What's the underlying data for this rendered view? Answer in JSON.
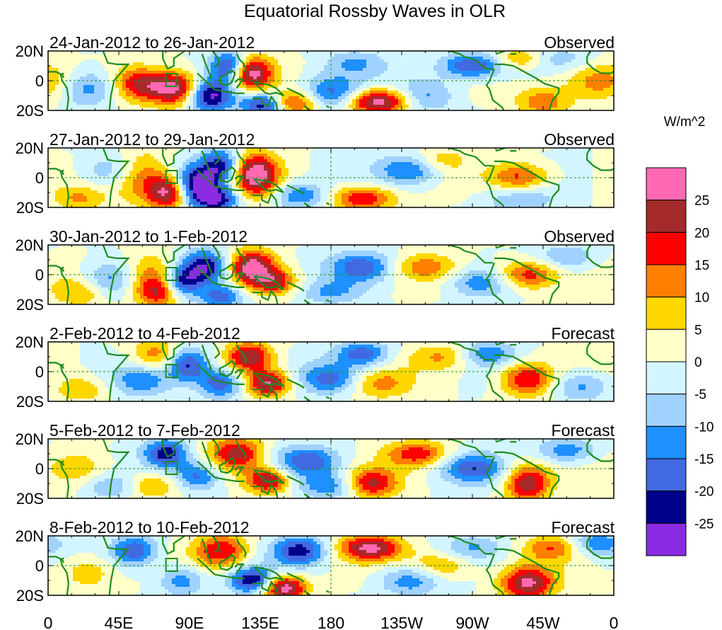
{
  "chart_data": {
    "type": "heatmap",
    "title": "Equatorial Rossby Waves in OLR",
    "units": "W/m^2",
    "x_ticks": [
      "0",
      "45E",
      "90E",
      "135E",
      "180",
      "135W",
      "90W",
      "45W",
      "0"
    ],
    "x_range_deg": [
      0,
      360
    ],
    "y_ticks": [
      "20N",
      "0",
      "20S"
    ],
    "y_range_deg": [
      -20,
      20
    ],
    "colorbar": {
      "labels": [
        "25",
        "20",
        "15",
        "10",
        "5",
        "0",
        "-5",
        "-10",
        "-15",
        "-20",
        "-25"
      ],
      "colors": [
        "#ff69b4",
        "#a52a2a",
        "#ff0000",
        "#ff7f00",
        "#ffd700",
        "#ffffc8",
        "#d2f5ff",
        "#a0d2ff",
        "#1e90ff",
        "#4169e1",
        "#00008b",
        "#8a2be2"
      ]
    },
    "panels": [
      {
        "date": "24-Jan-2012 to 26-Jan-2012",
        "kind": "Observed",
        "features": [
          {
            "lon": 80,
            "lat": -5,
            "amp": 30,
            "sx": 12,
            "sy": 8
          },
          {
            "lon": 57,
            "lat": -2,
            "amp": 18,
            "sx": 10,
            "sy": 8
          },
          {
            "lon": 130,
            "lat": 5,
            "amp": 28,
            "sx": 9,
            "sy": 8
          },
          {
            "lon": 155,
            "lat": -15,
            "amp": 22,
            "sx": 12,
            "sy": 6
          },
          {
            "lon": 210,
            "lat": -14,
            "amp": 30,
            "sx": 14,
            "sy": 6
          },
          {
            "lon": 315,
            "lat": -14,
            "amp": 14,
            "sx": 12,
            "sy": 7
          },
          {
            "lon": 350,
            "lat": 0,
            "amp": 14,
            "sx": 16,
            "sy": 9
          },
          {
            "lon": 300,
            "lat": 15,
            "amp": 12,
            "sx": 12,
            "sy": 5
          },
          {
            "lon": 103,
            "lat": -10,
            "amp": -28,
            "sx": 10,
            "sy": 8
          },
          {
            "lon": 138,
            "lat": -16,
            "amp": -28,
            "sx": 10,
            "sy": 6
          },
          {
            "lon": 25,
            "lat": -5,
            "amp": -14,
            "sx": 12,
            "sy": 9
          },
          {
            "lon": 115,
            "lat": 10,
            "amp": -22,
            "sx": 8,
            "sy": 7
          },
          {
            "lon": 180,
            "lat": -8,
            "amp": -18,
            "sx": 14,
            "sy": 8
          },
          {
            "lon": 270,
            "lat": 10,
            "amp": -22,
            "sx": 14,
            "sy": 6
          },
          {
            "lon": 240,
            "lat": -10,
            "amp": -12,
            "sx": 14,
            "sy": 8
          },
          {
            "lon": 325,
            "lat": 15,
            "amp": -8,
            "sx": 16,
            "sy": 6
          },
          {
            "lon": 195,
            "lat": 12,
            "amp": -10,
            "sx": 14,
            "sy": 6
          }
        ]
      },
      {
        "date": "27-Jan-2012 to 29-Jan-2012",
        "kind": "Observed",
        "features": [
          {
            "lon": 60,
            "lat": 0,
            "amp": 16,
            "sx": 12,
            "sy": 12
          },
          {
            "lon": 77,
            "lat": -10,
            "amp": 26,
            "sx": 9,
            "sy": 8
          },
          {
            "lon": 132,
            "lat": 2,
            "amp": 30,
            "sx": 10,
            "sy": 10
          },
          {
            "lon": 200,
            "lat": -14,
            "amp": 20,
            "sx": 14,
            "sy": 6
          },
          {
            "lon": 300,
            "lat": 0,
            "amp": 18,
            "sx": 14,
            "sy": 7
          },
          {
            "lon": 250,
            "lat": 12,
            "amp": 8,
            "sx": 12,
            "sy": 6
          },
          {
            "lon": 20,
            "lat": -14,
            "amp": 10,
            "sx": 12,
            "sy": 6
          },
          {
            "lon": 95,
            "lat": -5,
            "amp": -28,
            "sx": 10,
            "sy": 9
          },
          {
            "lon": 108,
            "lat": -15,
            "amp": -22,
            "sx": 10,
            "sy": 6
          },
          {
            "lon": 110,
            "lat": 8,
            "amp": -22,
            "sx": 9,
            "sy": 8
          },
          {
            "lon": 160,
            "lat": -12,
            "amp": -15,
            "sx": 12,
            "sy": 6
          },
          {
            "lon": 230,
            "lat": 5,
            "amp": -16,
            "sx": 14,
            "sy": 7
          },
          {
            "lon": 300,
            "lat": -14,
            "amp": -10,
            "sx": 16,
            "sy": 7
          },
          {
            "lon": 40,
            "lat": 5,
            "amp": -10,
            "sx": 14,
            "sy": 8
          }
        ]
      },
      {
        "date": "30-Jan-2012 to 1-Feb-2012",
        "kind": "Observed",
        "features": [
          {
            "lon": 65,
            "lat": 0,
            "amp": 14,
            "sx": 12,
            "sy": 10
          },
          {
            "lon": 70,
            "lat": -12,
            "amp": 18,
            "sx": 10,
            "sy": 7
          },
          {
            "lon": 130,
            "lat": 5,
            "amp": 28,
            "sx": 10,
            "sy": 8
          },
          {
            "lon": 145,
            "lat": -5,
            "amp": 18,
            "sx": 10,
            "sy": 6
          },
          {
            "lon": 240,
            "lat": 5,
            "amp": 12,
            "sx": 14,
            "sy": 6
          },
          {
            "lon": 305,
            "lat": 0,
            "amp": 20,
            "sx": 14,
            "sy": 7
          },
          {
            "lon": 20,
            "lat": -12,
            "amp": 10,
            "sx": 12,
            "sy": 7
          },
          {
            "lon": 100,
            "lat": 5,
            "amp": -26,
            "sx": 10,
            "sy": 8
          },
          {
            "lon": 85,
            "lat": -5,
            "amp": -22,
            "sx": 8,
            "sy": 7
          },
          {
            "lon": 110,
            "lat": -15,
            "amp": -18,
            "sx": 10,
            "sy": 6
          },
          {
            "lon": 200,
            "lat": 5,
            "amp": -18,
            "sx": 14,
            "sy": 7
          },
          {
            "lon": 275,
            "lat": -5,
            "amp": -14,
            "sx": 14,
            "sy": 7
          },
          {
            "lon": 330,
            "lat": 12,
            "amp": -10,
            "sx": 14,
            "sy": 6
          },
          {
            "lon": 40,
            "lat": -3,
            "amp": -12,
            "sx": 12,
            "sy": 8
          },
          {
            "lon": 180,
            "lat": -12,
            "amp": -10,
            "sx": 14,
            "sy": 6
          }
        ]
      },
      {
        "date": "2-Feb-2012 to 4-Feb-2012",
        "kind": "Forecast",
        "features": [
          {
            "lon": 70,
            "lat": 10,
            "amp": 16,
            "sx": 12,
            "sy": 8
          },
          {
            "lon": 128,
            "lat": 10,
            "amp": 24,
            "sx": 10,
            "sy": 7
          },
          {
            "lon": 140,
            "lat": -8,
            "amp": 26,
            "sx": 10,
            "sy": 6
          },
          {
            "lon": 210,
            "lat": -8,
            "amp": 12,
            "sx": 14,
            "sy": 7
          },
          {
            "lon": 305,
            "lat": -5,
            "amp": 22,
            "sx": 12,
            "sy": 8
          },
          {
            "lon": 250,
            "lat": 10,
            "amp": 10,
            "sx": 14,
            "sy": 6
          },
          {
            "lon": 20,
            "lat": -12,
            "amp": 10,
            "sx": 12,
            "sy": 6
          },
          {
            "lon": 88,
            "lat": 5,
            "amp": -24,
            "sx": 10,
            "sy": 8
          },
          {
            "lon": 110,
            "lat": -8,
            "amp": -20,
            "sx": 10,
            "sy": 7
          },
          {
            "lon": 60,
            "lat": -5,
            "amp": -14,
            "sx": 12,
            "sy": 8
          },
          {
            "lon": 180,
            "lat": -5,
            "amp": -16,
            "sx": 14,
            "sy": 7
          },
          {
            "lon": 200,
            "lat": 12,
            "amp": -18,
            "sx": 12,
            "sy": 6
          },
          {
            "lon": 280,
            "lat": 12,
            "amp": -14,
            "sx": 12,
            "sy": 6
          },
          {
            "lon": 340,
            "lat": -10,
            "amp": -12,
            "sx": 14,
            "sy": 7
          }
        ]
      },
      {
        "date": "5-Feb-2012 to 7-Feb-2012",
        "kind": "Forecast",
        "features": [
          {
            "lon": 120,
            "lat": 10,
            "amp": 22,
            "sx": 12,
            "sy": 8
          },
          {
            "lon": 140,
            "lat": -8,
            "amp": 24,
            "sx": 10,
            "sy": 6
          },
          {
            "lon": 205,
            "lat": -10,
            "amp": 22,
            "sx": 12,
            "sy": 7
          },
          {
            "lon": 235,
            "lat": 10,
            "amp": 18,
            "sx": 14,
            "sy": 6
          },
          {
            "lon": 305,
            "lat": -10,
            "amp": 24,
            "sx": 10,
            "sy": 9
          },
          {
            "lon": 20,
            "lat": 0,
            "amp": 10,
            "sx": 14,
            "sy": 9
          },
          {
            "lon": 65,
            "lat": -12,
            "amp": 10,
            "sx": 12,
            "sy": 6
          },
          {
            "lon": 75,
            "lat": 10,
            "amp": -24,
            "sx": 10,
            "sy": 7
          },
          {
            "lon": 95,
            "lat": -5,
            "amp": -18,
            "sx": 10,
            "sy": 7
          },
          {
            "lon": 165,
            "lat": 5,
            "amp": -18,
            "sx": 14,
            "sy": 7
          },
          {
            "lon": 180,
            "lat": -12,
            "amp": -14,
            "sx": 14,
            "sy": 6
          },
          {
            "lon": 270,
            "lat": 0,
            "amp": -18,
            "sx": 14,
            "sy": 7
          },
          {
            "lon": 330,
            "lat": 12,
            "amp": -14,
            "sx": 14,
            "sy": 6
          },
          {
            "lon": 40,
            "lat": -12,
            "amp": -10,
            "sx": 12,
            "sy": 6
          }
        ]
      },
      {
        "date": "8-Feb-2012 to 10-Feb-2012",
        "kind": "Forecast",
        "features": [
          {
            "lon": 110,
            "lat": 10,
            "amp": 20,
            "sx": 12,
            "sy": 8
          },
          {
            "lon": 150,
            "lat": -15,
            "amp": 30,
            "sx": 10,
            "sy": 6
          },
          {
            "lon": 205,
            "lat": 12,
            "amp": 26,
            "sx": 14,
            "sy": 6
          },
          {
            "lon": 250,
            "lat": 0,
            "amp": 12,
            "sx": 14,
            "sy": 7
          },
          {
            "lon": 305,
            "lat": -12,
            "amp": 26,
            "sx": 12,
            "sy": 8
          },
          {
            "lon": 320,
            "lat": 12,
            "amp": 14,
            "sx": 12,
            "sy": 6
          },
          {
            "lon": 25,
            "lat": -5,
            "amp": 10,
            "sx": 12,
            "sy": 8
          },
          {
            "lon": 55,
            "lat": 10,
            "amp": -20,
            "sx": 10,
            "sy": 7
          },
          {
            "lon": 85,
            "lat": -10,
            "amp": -14,
            "sx": 10,
            "sy": 7
          },
          {
            "lon": 130,
            "lat": -10,
            "amp": -26,
            "sx": 10,
            "sy": 6
          },
          {
            "lon": 160,
            "lat": 10,
            "amp": -22,
            "sx": 12,
            "sy": 7
          },
          {
            "lon": 230,
            "lat": -10,
            "amp": -14,
            "sx": 14,
            "sy": 7
          },
          {
            "lon": 270,
            "lat": 12,
            "amp": -10,
            "sx": 14,
            "sy": 6
          },
          {
            "lon": 350,
            "lat": 15,
            "amp": -14,
            "sx": 12,
            "sy": 6
          }
        ]
      }
    ]
  }
}
